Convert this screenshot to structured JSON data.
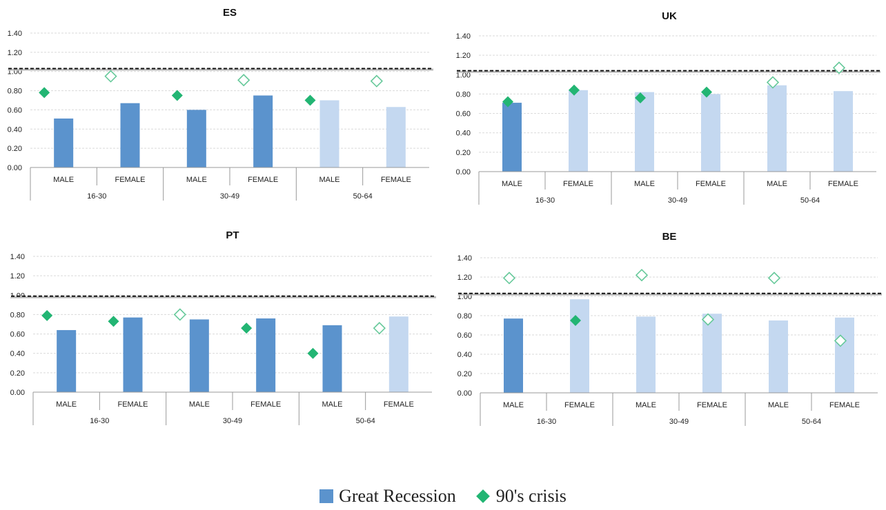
{
  "colors": {
    "bar_dark": "#5b93cd",
    "bar_light": "#c4d8f0",
    "diamond_fill": "#22b573",
    "diamond_outline": "#66c99a",
    "reference_line": "#111111",
    "grid": "#d9d9d9"
  },
  "legend": {
    "great_recession": "Great Recession",
    "crisis_90s": "90's crisis"
  },
  "chart_data": [
    {
      "type": "bar",
      "title": "ES",
      "ylim": [
        0,
        1.4
      ],
      "yticks": [
        "0.00",
        "0.20",
        "0.40",
        "0.60",
        "0.80",
        "1.00",
        "1.20",
        "1.40"
      ],
      "reference_line": 1.03,
      "categories": [
        "MALE",
        "FEMALE",
        "MALE",
        "FEMALE",
        "MALE",
        "FEMALE"
      ],
      "groups": [
        "16-30",
        "30-49",
        "50-64"
      ],
      "series": [
        {
          "name": "Great Recession",
          "values": [
            0.51,
            0.67,
            0.6,
            0.75,
            0.7,
            0.63
          ],
          "emphasis": [
            true,
            true,
            true,
            true,
            false,
            false
          ]
        },
        {
          "name": "90's crisis",
          "values": [
            0.78,
            0.95,
            0.75,
            0.91,
            0.7,
            0.9
          ],
          "emphasis": [
            true,
            false,
            true,
            false,
            true,
            false
          ]
        }
      ]
    },
    {
      "type": "bar",
      "title": "UK",
      "ylim": [
        0,
        1.4
      ],
      "yticks": [
        "0.00",
        "0.20",
        "0.40",
        "0.60",
        "0.80",
        "1.00",
        "1.20",
        "1.40"
      ],
      "reference_line": 1.04,
      "categories": [
        "MALE",
        "FEMALE",
        "MALE",
        "FEMALE",
        "MALE",
        "FEMALE"
      ],
      "groups": [
        "16-30",
        "30-49",
        "50-64"
      ],
      "series": [
        {
          "name": "Great Recession",
          "values": [
            0.71,
            0.84,
            0.82,
            0.8,
            0.89,
            0.83
          ],
          "emphasis": [
            true,
            false,
            false,
            false,
            false,
            false
          ]
        },
        {
          "name": "90's crisis",
          "values": [
            0.72,
            0.84,
            0.76,
            0.82,
            0.92,
            1.07
          ],
          "emphasis": [
            true,
            true,
            true,
            true,
            false,
            false
          ]
        }
      ]
    },
    {
      "type": "bar",
      "title": "PT",
      "ylim": [
        0,
        1.4
      ],
      "yticks": [
        "0.00",
        "0.20",
        "0.40",
        "0.60",
        "0.80",
        "1.00",
        "1.20",
        "1.40"
      ],
      "reference_line": 0.99,
      "categories": [
        "MALE",
        "FEMALE",
        "MALE",
        "FEMALE",
        "MALE",
        "FEMALE"
      ],
      "groups": [
        "16-30",
        "30-49",
        "50-64"
      ],
      "series": [
        {
          "name": "Great Recession",
          "values": [
            0.64,
            0.77,
            0.75,
            0.76,
            0.69,
            0.78
          ],
          "emphasis": [
            true,
            true,
            true,
            true,
            true,
            false
          ]
        },
        {
          "name": "90's crisis",
          "values": [
            0.79,
            0.73,
            0.8,
            0.66,
            0.4,
            0.66
          ],
          "emphasis": [
            true,
            true,
            false,
            true,
            true,
            false
          ]
        }
      ]
    },
    {
      "type": "bar",
      "title": "BE",
      "ylim": [
        0,
        1.4
      ],
      "yticks": [
        "0.00",
        "0.20",
        "0.40",
        "0.60",
        "0.80",
        "1.00",
        "1.20",
        "1.40"
      ],
      "reference_line": 1.03,
      "categories": [
        "MALE",
        "FEMALE",
        "MALE",
        "FEMALE",
        "MALE",
        "FEMALE"
      ],
      "groups": [
        "16-30",
        "30-49",
        "50-64"
      ],
      "series": [
        {
          "name": "Great Recession",
          "values": [
            0.77,
            0.97,
            0.79,
            0.82,
            0.75,
            0.78
          ],
          "emphasis": [
            true,
            false,
            false,
            false,
            false,
            false
          ]
        },
        {
          "name": "90's crisis",
          "values": [
            1.19,
            0.75,
            1.22,
            0.76,
            1.19,
            0.54
          ],
          "emphasis": [
            false,
            true,
            false,
            false,
            false,
            false
          ]
        }
      ]
    }
  ]
}
